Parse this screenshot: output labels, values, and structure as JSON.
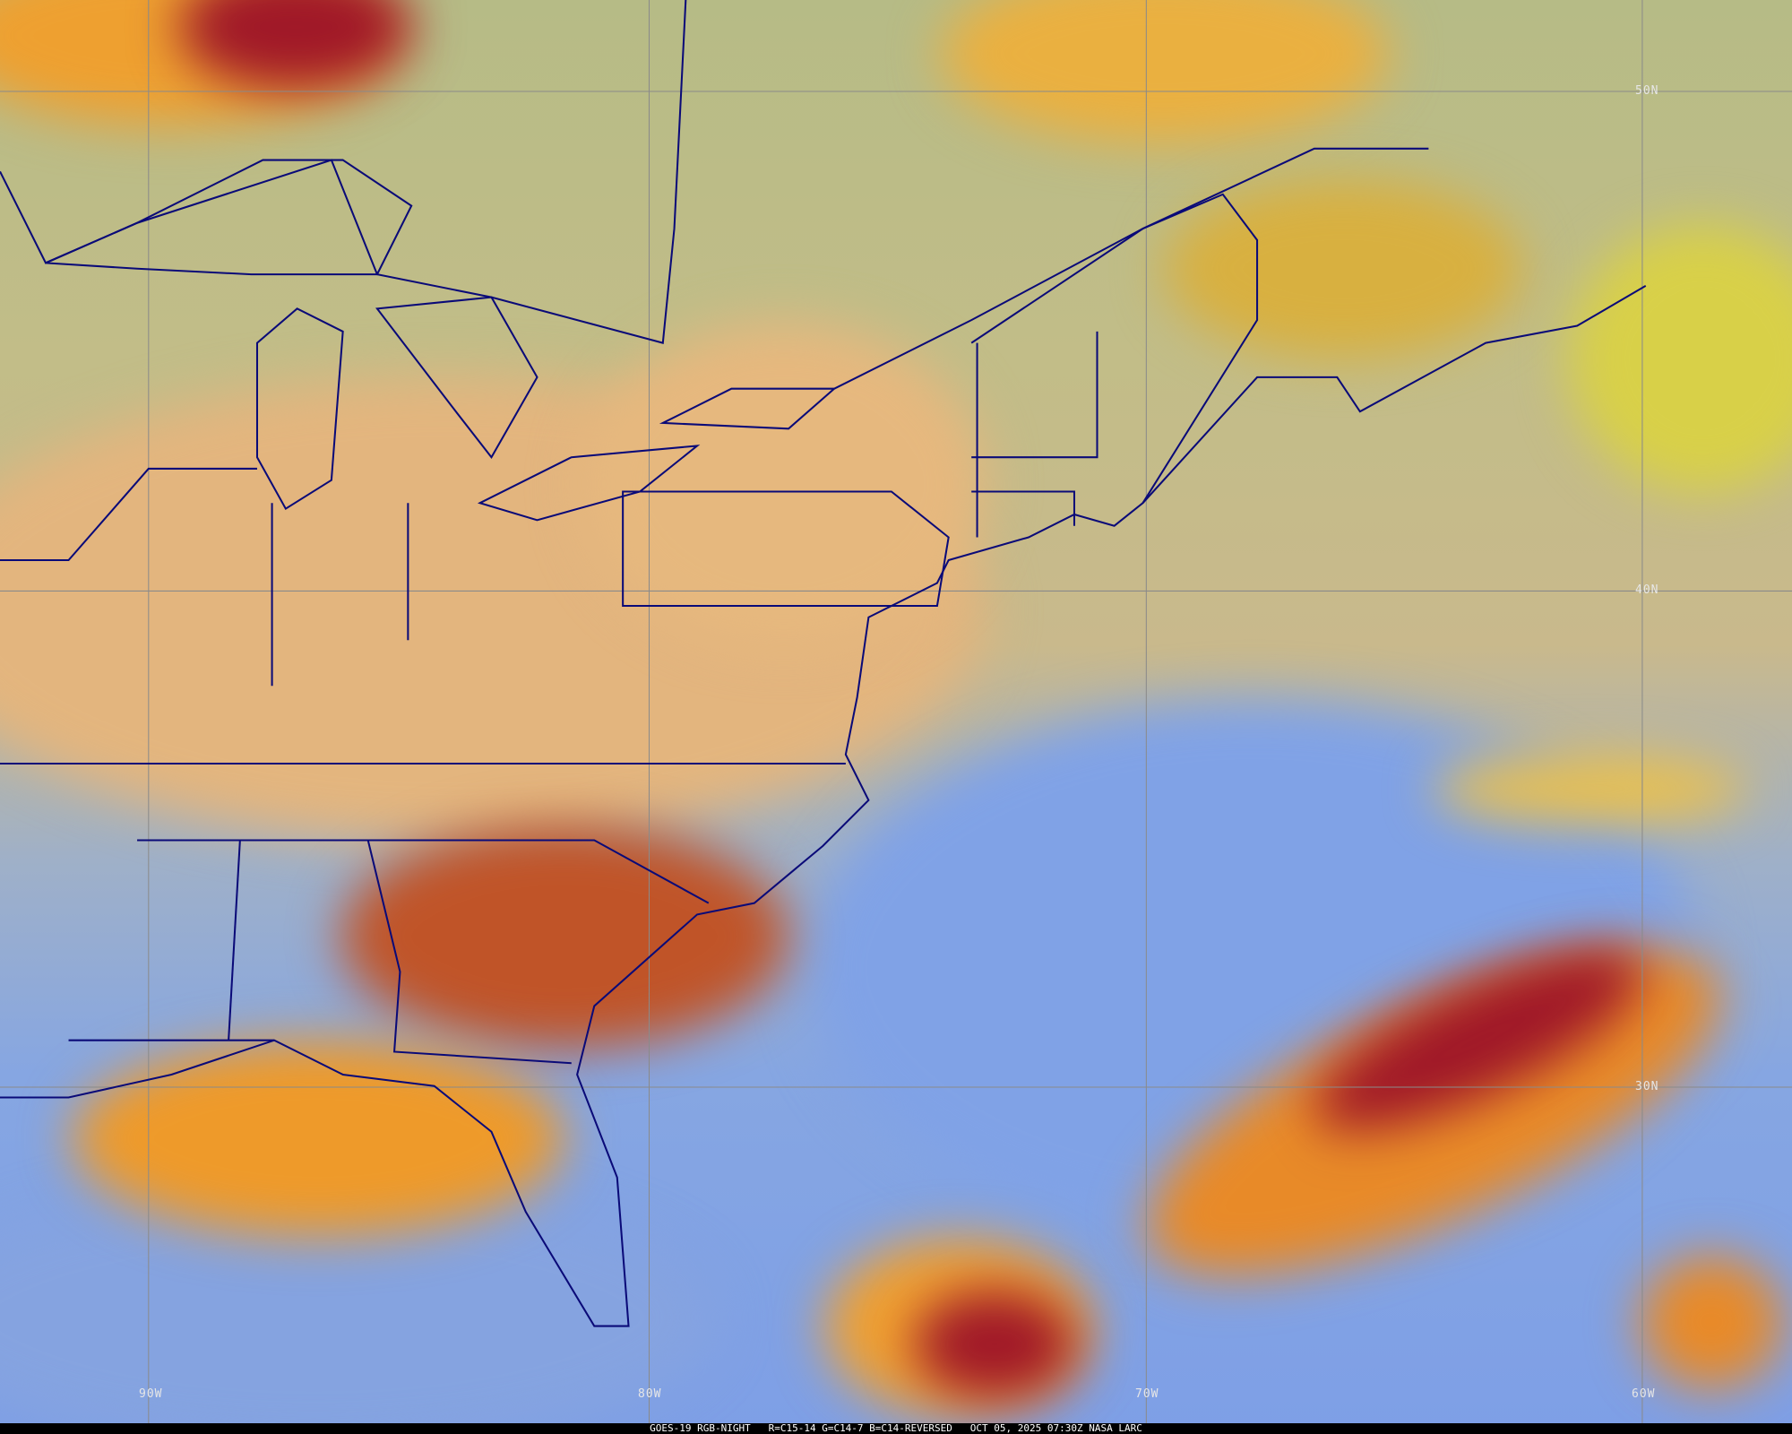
{
  "caption": {
    "product": "GOES-19 RGB-NIGHT",
    "channels": "R=C15-14 G=C14-7 B=C14-REVERSED",
    "timestamp": "OCT 05, 2025 07:30Z",
    "credit": "NASA LARC"
  },
  "grid": {
    "latitudes": [
      "50N",
      "40N",
      "30N"
    ],
    "longitudes": [
      "90W",
      "80W",
      "70W",
      "60W"
    ]
  },
  "colors": {
    "coastline": "#0a0a78",
    "grid": "#8a8a8a",
    "land": "#e6b87e",
    "ocean": "#7e9fe6",
    "high_cloud": "#f0a030",
    "thick_cloud": "#9a1020"
  }
}
